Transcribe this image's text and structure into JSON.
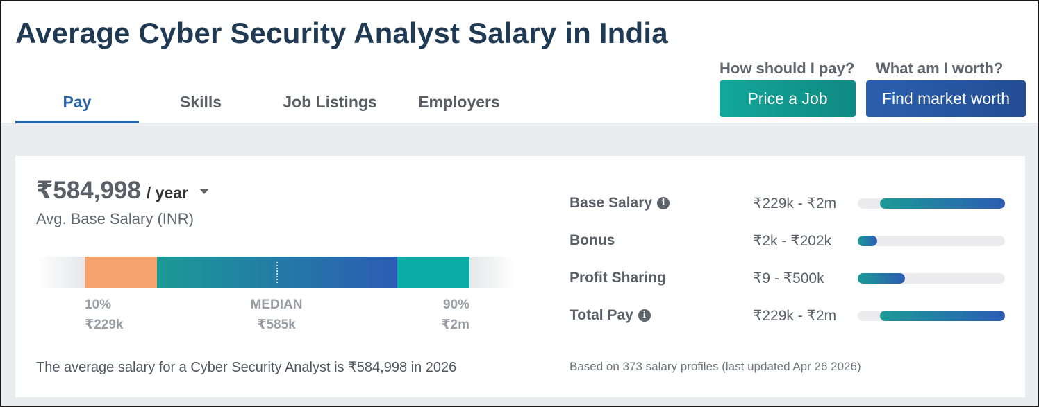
{
  "header": {
    "title": "Average Cyber Security Analyst Salary in India",
    "tabs": [
      {
        "label": "Pay",
        "active": true
      },
      {
        "label": "Skills",
        "active": false
      },
      {
        "label": "Job Listings",
        "active": false
      },
      {
        "label": "Employers",
        "active": false
      }
    ],
    "cta": {
      "pay_question": "How should I pay?",
      "price_button": "Price a Job",
      "worth_question": "What am I worth?",
      "worth_button": "Find market worth"
    }
  },
  "summary": {
    "amount": "₹584,998",
    "period": "/ year",
    "subtitle": "Avg. Base Salary (INR)",
    "average_text": "The average salary for a Cyber Security Analyst is ₹584,998 in 2026"
  },
  "distribution": {
    "p10_label": "10%",
    "p10_value": "₹229k",
    "median_label": "MEDIAN",
    "median_value": "₹585k",
    "p90_label": "90%",
    "p90_value": "₹2m"
  },
  "compensation": [
    {
      "label": "Base Salary",
      "info": true,
      "range": "₹229k - ₹2m",
      "fill_start": 0.15,
      "fill_end": 1.0
    },
    {
      "label": "Bonus",
      "info": false,
      "range": "₹2k - ₹202k",
      "fill_start": 0.0,
      "fill_end": 0.13
    },
    {
      "label": "Profit Sharing",
      "info": false,
      "range": "₹9 - ₹500k",
      "fill_start": 0.0,
      "fill_end": 0.32
    },
    {
      "label": "Total Pay",
      "info": true,
      "range": "₹229k - ₹2m",
      "fill_start": 0.15,
      "fill_end": 1.0
    }
  ],
  "footnote": "Based on 373 salary profiles (last updated Apr 26 2026)",
  "colors": {
    "title": "#1f3a52",
    "active_tab": "#2d64a4",
    "price_button": "#13a79b",
    "worth_button": "#2a5fae",
    "p10_segment": "#f6a46f",
    "p90_segment": "#0aada6"
  },
  "icons": {
    "info": "info-circle-icon",
    "dropdown": "caret-down-icon"
  }
}
